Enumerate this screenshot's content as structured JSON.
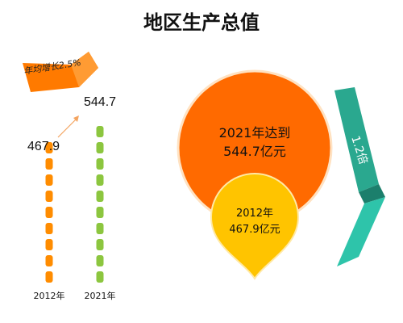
{
  "title": "地区生产总值",
  "colors": {
    "orange": "#FF8C00",
    "green": "#8CC63F",
    "deep_orange": "#FF6A00",
    "gold": "#FFC400",
    "teal": "#2BBFA6",
    "teal_dark": "#1C8F7A"
  },
  "chart_data": [
    {
      "type": "bar",
      "categories": [
        "2012年",
        "2021年"
      ],
      "values": [
        467.9,
        544.7
      ],
      "value_labels": [
        "467.9",
        "544.7"
      ],
      "annotation": "年均增长2.5%"
    },
    {
      "type": "bubble",
      "items": [
        {
          "year": "2021",
          "value": 544.7,
          "label_line1": "2021年达到",
          "label_line2": "544.7亿元"
        },
        {
          "year": "2012",
          "value": 467.9,
          "label_line1": "2012年",
          "label_line2": "467.9亿元"
        }
      ],
      "ratio_label": "1.2倍"
    }
  ]
}
